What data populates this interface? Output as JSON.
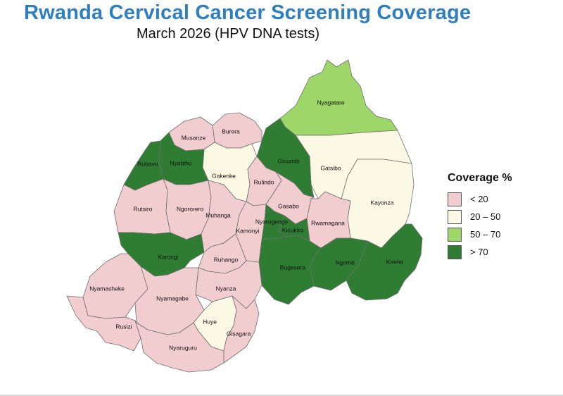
{
  "title": "Rwanda Cervical Cancer Screening Coverage",
  "subtitle": "March 2026 (HPV DNA tests)",
  "legend": {
    "title": "Coverage %",
    "items": [
      {
        "class": "lt20",
        "label": "< 20",
        "color": "#f2cdd0"
      },
      {
        "class": "20-50",
        "label": "20 – 50",
        "color": "#fbf8e3"
      },
      {
        "class": "50-70",
        "label": "50 – 70",
        "color": "#9fd66a"
      },
      {
        "class": "gt70",
        "label": "> 70",
        "color": "#2e7d32"
      }
    ]
  },
  "districts": [
    {
      "id": "nyagatare",
      "name": "Nyagatare",
      "class": "50-70"
    },
    {
      "id": "gatsibo",
      "name": "Gatsibo",
      "class": "20-50"
    },
    {
      "id": "kayonza",
      "name": "Kayonza",
      "class": "20-50"
    },
    {
      "id": "kirehe",
      "name": "Kirehe",
      "class": "gt70"
    },
    {
      "id": "ngoma",
      "name": "Ngoma",
      "class": "gt70"
    },
    {
      "id": "bugesera",
      "name": "Bugesera",
      "class": "gt70"
    },
    {
      "id": "rwamagana",
      "name": "Rwamagana",
      "class": "lt20"
    },
    {
      "id": "gicumbi",
      "name": "Gicumbi",
      "class": "gt70"
    },
    {
      "id": "burera",
      "name": "Burera",
      "class": "lt20"
    },
    {
      "id": "musanze",
      "name": "Musanze",
      "class": "lt20"
    },
    {
      "id": "gakenke",
      "name": "Gakenke",
      "class": "20-50"
    },
    {
      "id": "rulindo",
      "name": "Rulindo",
      "class": "lt20"
    },
    {
      "id": "gasabo",
      "name": "Gasabo",
      "class": "lt20"
    },
    {
      "id": "kicukiro",
      "name": "Kicukiro",
      "class": "gt70"
    },
    {
      "id": "nyarugenge",
      "name": "Nyarugenge",
      "class": "gt70"
    },
    {
      "id": "nyabihu",
      "name": "Nyabihu",
      "class": "gt70"
    },
    {
      "id": "rubavu",
      "name": "Rubavu",
      "class": "gt70"
    },
    {
      "id": "rutsiro",
      "name": "Rutsiro",
      "class": "lt20"
    },
    {
      "id": "ngororero",
      "name": "Ngororero",
      "class": "lt20"
    },
    {
      "id": "muhanga",
      "name": "Muhanga",
      "class": "lt20"
    },
    {
      "id": "kamonyi",
      "name": "Kamonyi",
      "class": "lt20"
    },
    {
      "id": "karongi",
      "name": "Karongi",
      "class": "gt70"
    },
    {
      "id": "ruhango",
      "name": "Ruhango",
      "class": "lt20"
    },
    {
      "id": "nyanza",
      "name": "Nyanza",
      "class": "lt20"
    },
    {
      "id": "nyamasheke",
      "name": "Nyamasheke",
      "class": "lt20"
    },
    {
      "id": "nyamagabe",
      "name": "Nyamagabe",
      "class": "lt20"
    },
    {
      "id": "huye",
      "name": "Huye",
      "class": "20-50"
    },
    {
      "id": "gisagara",
      "name": "Gisagara",
      "class": "lt20"
    },
    {
      "id": "rusizi",
      "name": "Rusizi",
      "class": "lt20"
    },
    {
      "id": "nyaruguru",
      "name": "Nyaruguru",
      "class": "lt20"
    }
  ]
}
